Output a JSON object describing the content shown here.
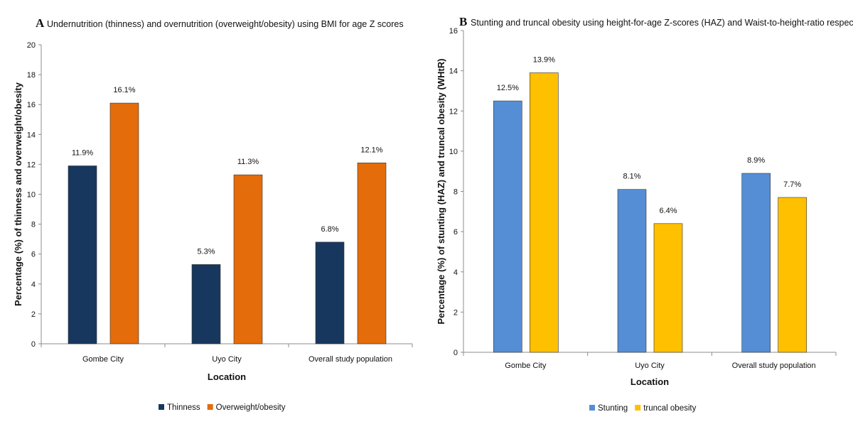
{
  "chart_data": [
    {
      "type": "bar",
      "panel_letter": "A",
      "title": "Undernutrition (thinness) and overnutrition (overweight/obesity) using BMI for age Z scores",
      "xlabel": "Location",
      "ylabel": "Percentage (%) of thinness and overweight/obesity",
      "categories": [
        "Gombe City",
        "Uyo City",
        "Overall study population"
      ],
      "series": [
        {
          "name": "Thinness",
          "color": "#17375e",
          "values": [
            11.9,
            5.3,
            6.8
          ],
          "labels": [
            "11.9%",
            "5.3%",
            "6.8%"
          ]
        },
        {
          "name": "Overweight/obesity",
          "color": "#e46c0a",
          "values": [
            16.1,
            11.3,
            12.1
          ],
          "labels": [
            "16.1%",
            "11.3%",
            "12.1%"
          ]
        }
      ],
      "ylim": [
        0,
        20
      ],
      "yticks": [
        0,
        2,
        4,
        6,
        8,
        10,
        12,
        14,
        16,
        18,
        20
      ],
      "grid": false,
      "legend_position": "bottom"
    },
    {
      "type": "bar",
      "panel_letter": "B",
      "title": "Stunting and truncal obesity using height-for-age Z-scores (HAZ) and Waist-to-height-ratio respectively",
      "xlabel": "Location",
      "ylabel": "Percentage (%) of stunting (HAZ) and truncal obesity (WHtR)",
      "categories": [
        "Gombe City",
        "Uyo City",
        "Overall study population"
      ],
      "series": [
        {
          "name": "Stunting",
          "color": "#558ed5",
          "values": [
            12.5,
            8.1,
            8.9
          ],
          "labels": [
            "12.5%",
            "8.1%",
            "8.9%"
          ]
        },
        {
          "name": "truncal obesity",
          "color": "#ffc000",
          "values": [
            13.9,
            6.4,
            7.7
          ],
          "labels": [
            "13.9%",
            "6.4%",
            "7.7%"
          ]
        }
      ],
      "ylim": [
        0,
        16
      ],
      "yticks": [
        0,
        2,
        4,
        6,
        8,
        10,
        12,
        14,
        16
      ],
      "grid": false,
      "legend_position": "bottom"
    }
  ]
}
